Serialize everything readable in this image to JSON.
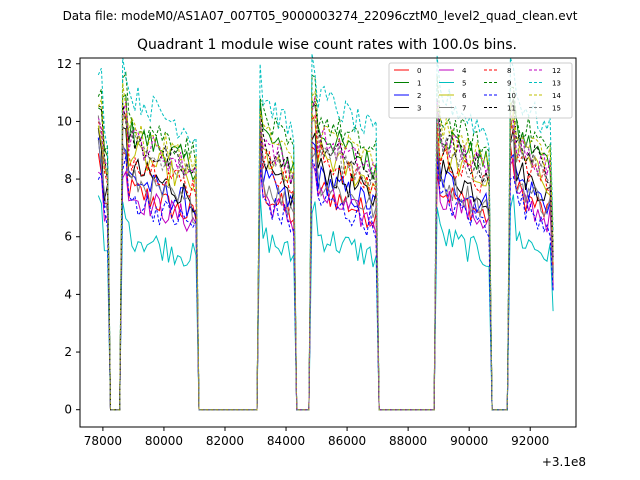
{
  "suptitle": "Data file: modeM0/AS1A07_007T05_9000003274_22096cztM0_level2_quad_clean.evt",
  "chart_data": {
    "type": "line",
    "title": "Quadrant 1 module wise count rates with 100.0s bins.",
    "xlabel": "",
    "ylabel": "",
    "x_offset_label": "+3.1e8",
    "xlim": [
      77250,
      93500
    ],
    "ylim": [
      -0.6,
      12.2
    ],
    "xticks": [
      78000,
      80000,
      82000,
      84000,
      86000,
      88000,
      90000,
      92000
    ],
    "yticks": [
      0,
      2,
      4,
      6,
      8,
      10,
      12
    ],
    "x_start": 77850,
    "x_end": 92750,
    "bin": 100,
    "on_intervals": [
      [
        77850,
        78150
      ],
      [
        78650,
        81050
      ],
      [
        83100,
        84250
      ],
      [
        84850,
        86950
      ],
      [
        88900,
        90650
      ],
      [
        91350,
        92750
      ]
    ],
    "legend_loc": "upper right",
    "series": [
      {
        "name": "0",
        "level": 7.2,
        "color": "#ff0000",
        "style": "solid"
      },
      {
        "name": "1",
        "level": 9.1,
        "color": "#008000",
        "style": "solid"
      },
      {
        "name": "2",
        "level": 7.6,
        "color": "#0000ff",
        "style": "solid"
      },
      {
        "name": "3",
        "level": 7.9,
        "color": "#000000",
        "style": "solid"
      },
      {
        "name": "4",
        "level": 7.0,
        "color": "#bf00bf",
        "style": "solid"
      },
      {
        "name": "5",
        "level": 5.7,
        "color": "#00bfbf",
        "style": "solid"
      },
      {
        "name": "6",
        "level": 8.4,
        "color": "#bfbf00",
        "style": "solid"
      },
      {
        "name": "7",
        "level": 7.5,
        "color": "#808080",
        "style": "solid"
      },
      {
        "name": "8",
        "level": 8.3,
        "color": "#ff0000",
        "style": "dashed"
      },
      {
        "name": "9",
        "level": 9.6,
        "color": "#008000",
        "style": "dashed"
      },
      {
        "name": "10",
        "level": 6.9,
        "color": "#0000ff",
        "style": "dashed"
      },
      {
        "name": "11",
        "level": 8.8,
        "color": "#000000",
        "style": "dashed"
      },
      {
        "name": "12",
        "level": 8.9,
        "color": "#bf00bf",
        "style": "dashed"
      },
      {
        "name": "13",
        "level": 10.3,
        "color": "#00bfbf",
        "style": "dashed"
      },
      {
        "name": "14",
        "level": 9.2,
        "color": "#bfbf00",
        "style": "dashed"
      },
      {
        "name": "15",
        "level": 8.6,
        "color": "#808080",
        "style": "dashed"
      }
    ]
  }
}
